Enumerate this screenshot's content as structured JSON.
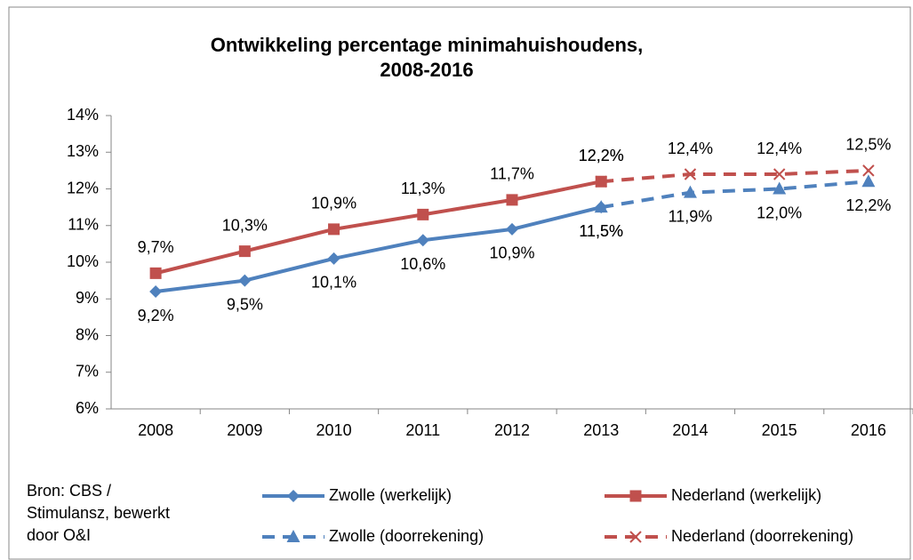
{
  "chart_data": {
    "type": "line",
    "title": [
      "Ontwikkeling percentage minimahuishoudens,",
      "2008-2016"
    ],
    "source": [
      "Bron: CBS /",
      "Stimulansz, bewerkt",
      "door O&I"
    ],
    "categories": [
      "2008",
      "2009",
      "2010",
      "2011",
      "2012",
      "2013",
      "2014",
      "2015",
      "2016"
    ],
    "ylim": [
      6,
      14
    ],
    "yticks": [
      {
        "value": 6,
        "label": "6%"
      },
      {
        "value": 7,
        "label": "7%"
      },
      {
        "value": 8,
        "label": "8%"
      },
      {
        "value": 9,
        "label": "9%"
      },
      {
        "value": 10,
        "label": "10%"
      },
      {
        "value": 11,
        "label": "11%"
      },
      {
        "value": 12,
        "label": "12%"
      },
      {
        "value": 13,
        "label": "13%"
      },
      {
        "value": 14,
        "label": "14%"
      }
    ],
    "grid": false,
    "series": [
      {
        "name": "Zwolle (werkelijk)",
        "color": "#4f81bd",
        "marker": "diamond",
        "dashed": false,
        "label_side": "below",
        "values": [
          9.2,
          9.5,
          10.1,
          10.6,
          10.9,
          11.5,
          null,
          null,
          null
        ],
        "value_labels": [
          "9,2%",
          "9,5%",
          "10,1%",
          "10,6%",
          "10,9%",
          "11,5%",
          null,
          null,
          null
        ]
      },
      {
        "name": "Nederland (werkelijk)",
        "color": "#c0504d",
        "marker": "square",
        "dashed": false,
        "label_side": "above",
        "values": [
          9.7,
          10.3,
          10.9,
          11.3,
          11.7,
          12.2,
          null,
          null,
          null
        ],
        "value_labels": [
          "9,7%",
          "10,3%",
          "10,9%",
          "11,3%",
          "11,7%",
          "12,2%",
          null,
          null,
          null
        ]
      },
      {
        "name": "Zwolle (doorrekening)",
        "color": "#4f81bd",
        "marker": "triangle",
        "dashed": true,
        "label_side": "below",
        "values": [
          null,
          null,
          null,
          null,
          null,
          11.5,
          11.9,
          12.0,
          12.2
        ],
        "value_labels": [
          null,
          null,
          null,
          null,
          null,
          "11,5%",
          "11,9%",
          "12,0%",
          "12,2%"
        ]
      },
      {
        "name": "Nederland (doorrekening)",
        "color": "#c0504d",
        "marker": "x",
        "dashed": true,
        "label_side": "above",
        "values": [
          null,
          null,
          null,
          null,
          null,
          12.2,
          12.4,
          12.4,
          12.5
        ],
        "value_labels": [
          null,
          null,
          null,
          null,
          null,
          "12,2%",
          "12,4%",
          "12,4%",
          "12,5%"
        ]
      }
    ]
  }
}
